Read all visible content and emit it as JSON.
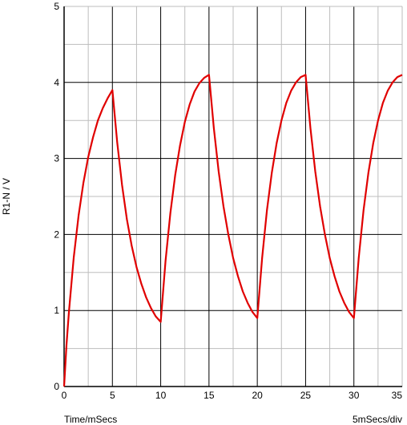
{
  "chart_data": {
    "type": "line",
    "title": "",
    "xlabel": "Time/mSecs",
    "ylabel": "R1-N / V",
    "scale_label": "5mSecs/div",
    "xlim": [
      0,
      35
    ],
    "ylim": [
      0,
      5
    ],
    "x_major_ticks": [
      0,
      5,
      10,
      15,
      20,
      25,
      30,
      35
    ],
    "y_major_ticks": [
      0,
      1,
      2,
      3,
      4,
      5
    ],
    "x_minor_step": 2.5,
    "y_minor_step": 0.5,
    "grid": true,
    "series": [
      {
        "name": "",
        "color": "#e00000",
        "x": [
          0,
          0.25,
          0.5,
          1,
          1.5,
          2,
          2.5,
          3,
          3.5,
          4,
          4.5,
          5,
          5.5,
          6,
          6.5,
          7,
          7.5,
          8,
          8.5,
          9,
          9.5,
          10,
          10.5,
          11,
          11.5,
          12,
          12.5,
          13,
          13.5,
          14,
          14.5,
          15,
          15.5,
          16,
          16.5,
          17,
          17.5,
          18,
          18.5,
          19,
          19.5,
          20,
          20.5,
          21,
          21.5,
          22,
          22.5,
          23,
          23.5,
          24,
          24.5,
          25,
          25.5,
          26,
          26.5,
          27,
          27.5,
          28,
          28.5,
          29,
          29.5,
          30,
          30.5,
          31,
          31.5,
          32,
          32.5,
          33,
          33.5,
          34,
          34.5,
          35
        ],
        "y": [
          0,
          0.55,
          0.98,
          1.7,
          2.25,
          2.68,
          3.02,
          3.28,
          3.5,
          3.66,
          3.79,
          3.9,
          3.21,
          2.65,
          2.2,
          1.85,
          1.57,
          1.35,
          1.17,
          1.03,
          0.92,
          0.85,
          1.65,
          2.28,
          2.78,
          3.17,
          3.48,
          3.71,
          3.88,
          3.99,
          4.06,
          4.1,
          3.4,
          2.83,
          2.37,
          2.0,
          1.69,
          1.45,
          1.25,
          1.1,
          0.98,
          0.9,
          1.69,
          2.32,
          2.81,
          3.2,
          3.5,
          3.73,
          3.89,
          4.0,
          4.07,
          4.1,
          3.4,
          2.83,
          2.37,
          2.0,
          1.69,
          1.45,
          1.25,
          1.1,
          0.98,
          0.9,
          1.69,
          2.32,
          2.81,
          3.2,
          3.5,
          3.73,
          3.89,
          4.0,
          4.07,
          4.1
        ]
      }
    ]
  }
}
